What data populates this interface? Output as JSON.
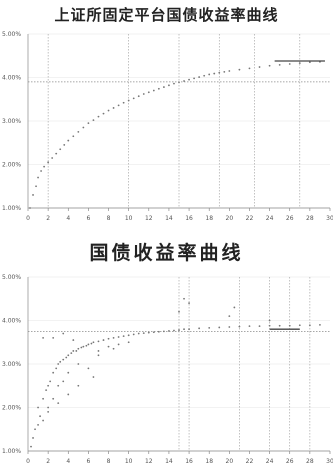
{
  "chart_data": [
    {
      "type": "scatter",
      "title": "上证所固定平台国债收益率曲线",
      "xlabel": "",
      "ylabel": "",
      "xlim": [
        0,
        30
      ],
      "ylim": [
        1,
        5
      ],
      "grid": true,
      "y_ticks": [
        "1.00%",
        "2.00%",
        "3.00%",
        "4.00%",
        "5.00%"
      ],
      "x_ticks": [
        "0",
        "2",
        "4",
        "6",
        "8",
        "10",
        "12",
        "14",
        "16",
        "18",
        "20",
        "22",
        "24",
        "26",
        "28",
        "30"
      ],
      "reference_lines_x": [
        2,
        10,
        15,
        19,
        22.5,
        27
      ],
      "reference_line_y": 3.9,
      "series": [
        {
          "x": [
            0.2,
            0.5,
            0.8,
            1,
            1.3,
            1.6,
            2,
            2.4,
            2.8,
            3.2,
            3.6,
            4,
            4.5,
            5,
            5.5,
            6,
            6.5,
            7,
            7.5,
            8,
            8.5,
            9,
            9.5,
            10,
            10.5,
            11,
            11.5,
            12,
            12.5,
            13,
            13.5,
            14,
            14.5,
            15,
            15.5,
            16,
            16.5,
            17,
            17.5,
            18,
            18.5,
            19,
            19.5,
            20,
            21,
            22,
            23,
            24,
            25,
            26,
            27,
            28,
            29
          ],
          "y": [
            1.0,
            1.3,
            1.5,
            1.7,
            1.85,
            1.95,
            2.05,
            2.15,
            2.25,
            2.35,
            2.45,
            2.55,
            2.65,
            2.75,
            2.85,
            2.95,
            3.02,
            3.1,
            3.17,
            3.24,
            3.3,
            3.36,
            3.42,
            3.47,
            3.52,
            3.57,
            3.62,
            3.66,
            3.7,
            3.74,
            3.78,
            3.82,
            3.86,
            3.89,
            3.92,
            3.95,
            3.98,
            4.01,
            4.04,
            4.07,
            4.09,
            4.11,
            4.13,
            4.15,
            4.18,
            4.21,
            4.24,
            4.27,
            4.29,
            4.31,
            4.33,
            4.35,
            4.36
          ]
        }
      ],
      "highlight_segment": {
        "x": [
          24.5,
          29.5
        ],
        "y": 4.38
      }
    },
    {
      "type": "scatter",
      "title": "国债收益率曲线",
      "xlabel": "",
      "ylabel": "",
      "xlim": [
        0,
        30
      ],
      "ylim": [
        1,
        5
      ],
      "grid": true,
      "y_ticks": [
        "1.00%",
        "2.00%",
        "3.00%",
        "4.00%",
        "5.00%"
      ],
      "x_ticks": [
        "0",
        "2",
        "4",
        "6",
        "8",
        "10",
        "12",
        "14",
        "16",
        "18",
        "20",
        "22",
        "24",
        "26",
        "28",
        "30"
      ],
      "reference_lines_x": [
        15,
        16,
        21,
        24,
        26,
        28
      ],
      "reference_line_y": 3.75,
      "series": [
        {
          "x": [
            0.3,
            0.5,
            0.7,
            1,
            1,
            1.2,
            1.5,
            1.5,
            1.8,
            2,
            2,
            2.2,
            2.5,
            2.5,
            2.8,
            3,
            3,
            3.2,
            3.5,
            3.5,
            3.8,
            4,
            4,
            4.3,
            4.5,
            4.8,
            5,
            5,
            5.3,
            5.5,
            5.8,
            6,
            6.3,
            6.5,
            7,
            7,
            7.5,
            8,
            8,
            8.5,
            9,
            9,
            9.5,
            10,
            10,
            10.5,
            11,
            11.5,
            12,
            12.5,
            13,
            13.5,
            14,
            14.5,
            15,
            15,
            15.5,
            16,
            16,
            17,
            18,
            19,
            20,
            20,
            21,
            22,
            23,
            24,
            24,
            25,
            26,
            27,
            28,
            29,
            1.5,
            2.5,
            3.5,
            4.5,
            6,
            7,
            8.5,
            2,
            3,
            4,
            5,
            6.5,
            15.5,
            20.5
          ],
          "y": [
            1.1,
            1.3,
            1.5,
            1.6,
            2.0,
            1.8,
            2.2,
            1.7,
            2.4,
            2.5,
            1.9,
            2.6,
            2.8,
            2.2,
            2.9,
            3.0,
            2.5,
            3.05,
            3.1,
            2.6,
            3.15,
            3.2,
            2.8,
            3.25,
            3.3,
            3.3,
            3.35,
            3.0,
            3.38,
            3.4,
            3.42,
            3.45,
            3.47,
            3.5,
            3.52,
            3.3,
            3.55,
            3.58,
            3.4,
            3.6,
            3.62,
            3.45,
            3.64,
            3.66,
            3.5,
            3.68,
            3.7,
            3.71,
            3.72,
            3.73,
            3.74,
            3.75,
            3.76,
            3.77,
            3.78,
            4.2,
            3.8,
            3.8,
            4.4,
            3.82,
            3.83,
            3.84,
            3.85,
            4.1,
            3.86,
            3.87,
            3.87,
            3.88,
            4.0,
            3.88,
            3.88,
            3.89,
            3.89,
            3.9,
            3.6,
            3.6,
            3.7,
            3.55,
            2.9,
            3.2,
            3.35,
            2.0,
            2.1,
            2.3,
            2.5,
            2.7,
            4.5,
            4.3
          ]
        }
      ],
      "highlight_segment": {
        "x": [
          24,
          27
        ],
        "y": 3.8
      }
    }
  ]
}
